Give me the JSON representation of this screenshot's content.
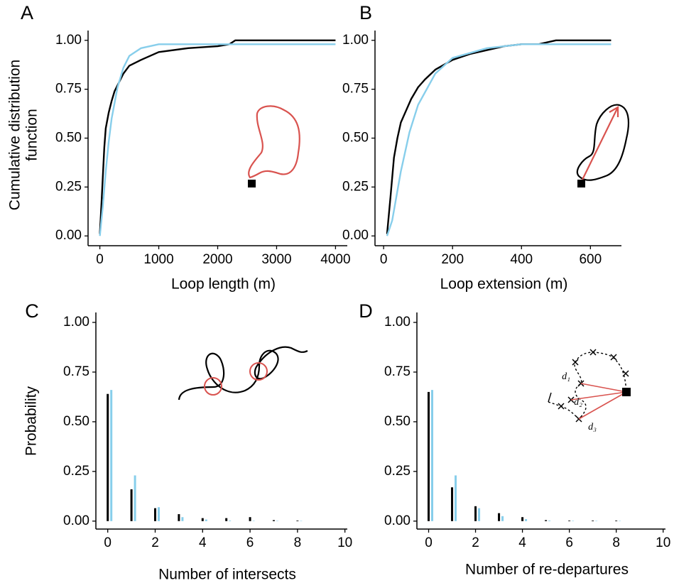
{
  "chart_data": [
    {
      "type": "line",
      "panel_label": "A",
      "x_label": "Loop length (m)",
      "y_label": [
        "Cumulative distribution",
        "function"
      ],
      "xlim": [
        -200,
        4200
      ],
      "ylim": [
        -0.05,
        1.05
      ],
      "xticks": [
        0,
        1000,
        2000,
        3000,
        4000
      ],
      "yticks": [
        {
          "value": 0,
          "label": "0.00"
        },
        {
          "value": 0.25,
          "label": "0.25"
        },
        {
          "value": 0.5,
          "label": "0.50"
        },
        {
          "value": 0.75,
          "label": "0.75"
        },
        {
          "value": 1,
          "label": "1.00"
        }
      ],
      "series": [
        {
          "color": "#000000",
          "x": [
            0,
            25,
            50,
            75,
            100,
            150,
            200,
            250,
            300,
            400,
            500,
            700,
            1000,
            1500,
            2000,
            2200,
            2300,
            3000,
            4000
          ],
          "values": [
            0.01,
            0.15,
            0.3,
            0.45,
            0.55,
            0.63,
            0.69,
            0.74,
            0.77,
            0.83,
            0.87,
            0.9,
            0.94,
            0.96,
            0.97,
            0.98,
            1.0,
            1.0,
            1.0
          ]
        },
        {
          "color": "#87ceeb",
          "x": [
            0,
            50,
            100,
            150,
            200,
            300,
            400,
            500,
            700,
            1000,
            1500,
            4000
          ],
          "values": [
            0,
            0.15,
            0.33,
            0.48,
            0.6,
            0.76,
            0.86,
            0.92,
            0.96,
            0.98,
            0.98,
            0.98
          ]
        }
      ]
    },
    {
      "type": "line",
      "panel_label": "B",
      "x_label": "Loop extension (m)",
      "xlim": [
        -25,
        690
      ],
      "ylim": [
        -0.05,
        1.05
      ],
      "xticks": [
        0,
        200,
        400,
        600
      ],
      "yticks": [
        {
          "value": 0,
          "label": "0.00"
        },
        {
          "value": 0.25,
          "label": "0.25"
        },
        {
          "value": 0.5,
          "label": "0.50"
        },
        {
          "value": 0.75,
          "label": "0.75"
        },
        {
          "value": 1,
          "label": "1.00"
        }
      ],
      "series": [
        {
          "color": "#000000",
          "x": [
            10,
            20,
            30,
            40,
            50,
            60,
            80,
            100,
            120,
            150,
            200,
            250,
            300,
            350,
            400,
            450,
            500,
            660
          ],
          "values": [
            0.01,
            0.2,
            0.4,
            0.5,
            0.58,
            0.62,
            0.7,
            0.76,
            0.8,
            0.85,
            0.9,
            0.93,
            0.95,
            0.97,
            0.98,
            0.98,
            1.0,
            1.0
          ]
        },
        {
          "color": "#87ceeb",
          "x": [
            10,
            25,
            50,
            75,
            100,
            150,
            200,
            300,
            400,
            500,
            660
          ],
          "values": [
            0,
            0.08,
            0.33,
            0.53,
            0.67,
            0.83,
            0.91,
            0.96,
            0.98,
            0.98,
            0.98
          ]
        }
      ]
    },
    {
      "type": "bar",
      "panel_label": "C",
      "x_label": "Number of intersects",
      "y_label": "Probability",
      "xlim": [
        -0.5,
        10.1
      ],
      "ylim": [
        -0.04,
        1.05
      ],
      "xticks": [
        0,
        2,
        4,
        6,
        8,
        10
      ],
      "yticks": [
        {
          "value": 0,
          "label": "0.00"
        },
        {
          "value": 0.25,
          "label": "0.25"
        },
        {
          "value": 0.5,
          "label": "0.50"
        },
        {
          "value": 0.75,
          "label": "0.75"
        },
        {
          "value": 1,
          "label": "1.00"
        }
      ],
      "x": [
        0,
        1,
        2,
        3,
        4,
        5,
        6,
        7,
        8
      ],
      "series": [
        {
          "color": "#000000",
          "values": [
            0.64,
            0.16,
            0.065,
            0.035,
            0.015,
            0.015,
            0.02,
            0.005,
            0.003
          ]
        },
        {
          "color": "#87ceeb",
          "values": [
            0.66,
            0.23,
            0.07,
            0.02,
            0.008,
            0.003,
            0.002,
            0.001,
            0.001
          ]
        }
      ]
    },
    {
      "type": "bar",
      "panel_label": "D",
      "x_label": "Number of re-departures",
      "inset_labels": [
        "d₁",
        "d₂",
        "d₃"
      ],
      "xlim": [
        -0.5,
        10.1
      ],
      "ylim": [
        -0.04,
        1.05
      ],
      "xticks": [
        0,
        2,
        4,
        6,
        8,
        10
      ],
      "yticks": [
        {
          "value": 0,
          "label": "0.00"
        },
        {
          "value": 0.25,
          "label": "0.25"
        },
        {
          "value": 0.5,
          "label": "0.50"
        },
        {
          "value": 0.75,
          "label": "0.75"
        },
        {
          "value": 1,
          "label": "1.00"
        }
      ],
      "x": [
        0,
        1,
        2,
        3,
        4,
        5,
        6,
        7,
        8
      ],
      "series": [
        {
          "color": "#000000",
          "values": [
            0.65,
            0.17,
            0.075,
            0.04,
            0.02,
            0.005,
            0.003,
            0.003,
            0.003
          ]
        },
        {
          "color": "#87ceeb",
          "values": [
            0.66,
            0.23,
            0.065,
            0.025,
            0.01,
            0.003,
            0.002,
            0.001,
            0.001
          ]
        }
      ]
    }
  ]
}
